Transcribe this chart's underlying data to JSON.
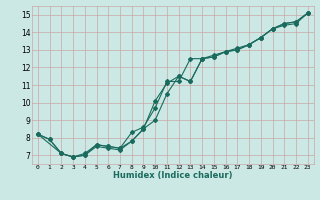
{
  "title": "",
  "xlabel": "Humidex (Indice chaleur)",
  "ylabel": "",
  "bg_color": "#cce8e4",
  "grid_color": "#c8a8a8",
  "line_color": "#1a6b5e",
  "xlim": [
    -0.5,
    23.5
  ],
  "ylim": [
    6.5,
    15.5
  ],
  "xticks": [
    0,
    1,
    2,
    3,
    4,
    5,
    6,
    7,
    8,
    9,
    10,
    11,
    12,
    13,
    14,
    15,
    16,
    17,
    18,
    19,
    20,
    21,
    22,
    23
  ],
  "yticks": [
    7,
    8,
    9,
    10,
    11,
    12,
    13,
    14,
    15
  ],
  "line1_x": [
    0,
    1,
    2,
    3,
    4,
    5,
    6,
    7,
    8,
    9,
    10,
    11,
    12,
    13,
    14,
    15,
    16,
    17,
    18,
    19,
    20,
    21,
    22,
    23
  ],
  "line1_y": [
    8.2,
    7.9,
    7.1,
    6.9,
    7.0,
    7.5,
    7.4,
    7.3,
    7.8,
    8.5,
    9.0,
    10.5,
    11.5,
    11.2,
    12.5,
    12.6,
    12.9,
    13.0,
    13.3,
    13.7,
    14.2,
    14.4,
    14.5,
    15.1
  ],
  "line2_x": [
    0,
    1,
    2,
    3,
    4,
    5,
    6,
    7,
    8,
    9,
    10,
    11,
    12,
    13,
    14,
    15,
    16,
    17,
    18,
    19,
    20,
    21,
    22,
    23
  ],
  "line2_y": [
    8.2,
    7.9,
    7.1,
    6.9,
    7.1,
    7.6,
    7.5,
    7.4,
    8.3,
    8.6,
    9.7,
    11.2,
    11.2,
    12.5,
    12.5,
    12.7,
    12.9,
    13.0,
    13.3,
    13.7,
    14.2,
    14.5,
    14.6,
    15.1
  ],
  "line3_x": [
    0,
    2,
    3,
    4,
    5,
    6,
    7,
    8,
    9,
    10,
    11,
    12,
    13,
    14,
    15,
    16,
    17,
    18,
    19,
    20,
    21,
    22,
    23
  ],
  "line3_y": [
    8.2,
    7.1,
    6.9,
    7.0,
    7.6,
    7.5,
    7.4,
    7.8,
    8.5,
    10.1,
    11.1,
    11.5,
    11.2,
    12.5,
    12.6,
    12.9,
    13.1,
    13.3,
    13.7,
    14.2,
    14.5,
    14.6,
    15.1
  ]
}
